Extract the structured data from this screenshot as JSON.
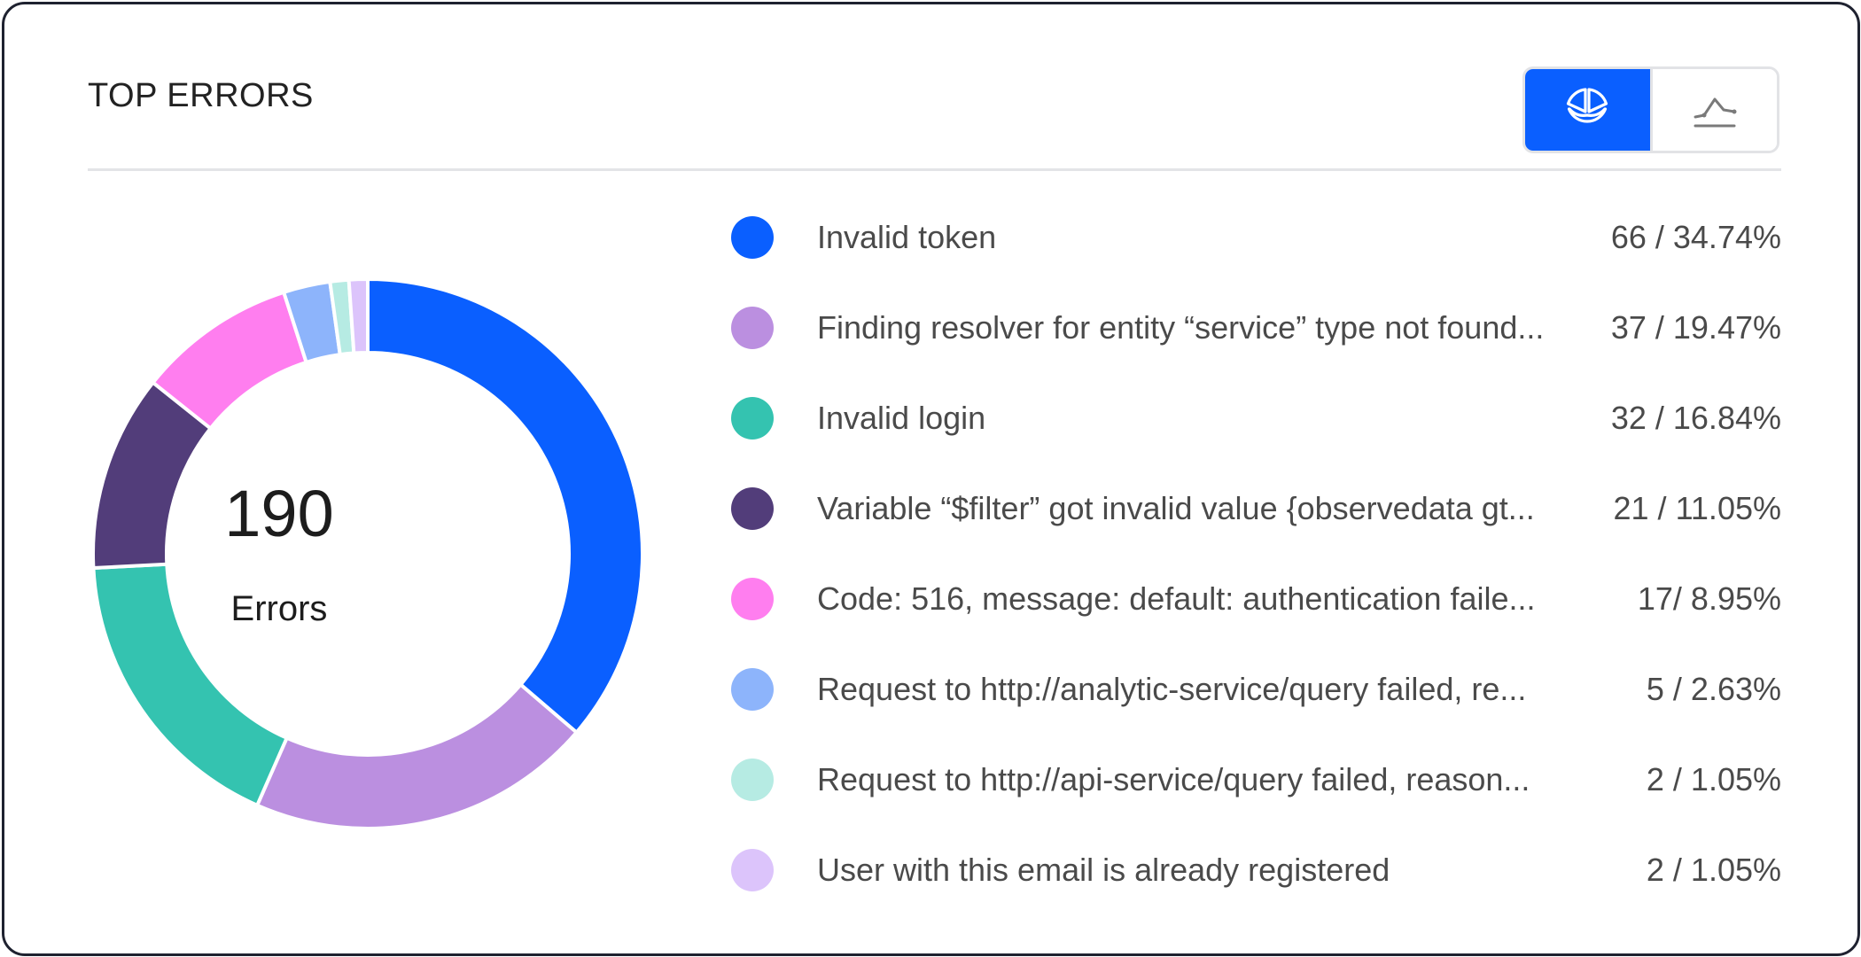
{
  "widget": {
    "title": "TOP ERRORS",
    "view_toggle": [
      {
        "icon": "pie-chart-icon",
        "active": true
      },
      {
        "icon": "line-chart-icon",
        "active": false
      }
    ],
    "accent_color": "#0a5fff"
  },
  "summary": {
    "total": "190",
    "label": "Errors"
  },
  "legend": [
    {
      "label": "Invalid token",
      "value": "66 / 34.74%",
      "color": "#0a5fff"
    },
    {
      "label": "Finding resolver for entity “service” type not found...",
      "value": "37 / 19.47%",
      "color": "#bb8fe0"
    },
    {
      "label": "Invalid login",
      "value": "32 / 16.84%",
      "color": "#34c3b0"
    },
    {
      "label": "Variable “$filter” got invalid value {observedata gt...",
      "value": "21 / 11.05%",
      "color": "#523d7a"
    },
    {
      "label": "Code: 516, message: default: authentication faile...",
      "value": "17/ 8.95%",
      "color": "#ff7eef"
    },
    {
      "label": "Request to http://analytic-service/query failed, re...",
      "value": "5 / 2.63%",
      "color": "#8db4fb"
    },
    {
      "label": "Request to http://api-service/query failed, reason...",
      "value": "2 / 1.05%",
      "color": "#b6ebe3"
    },
    {
      "label": "User with this email is already registered",
      "value": "2 / 1.05%",
      "color": "#dcc4fb"
    }
  ],
  "chart_data": {
    "type": "pie",
    "donut": true,
    "total": 190,
    "categories": [
      "Invalid token",
      "Finding resolver for entity “service” type not found...",
      "Invalid login",
      "Variable “$filter” got invalid value {observedata gt...",
      "Code: 516, message: default: authentication faile...",
      "Request to http://analytic-service/query failed, re...",
      "Request to http://api-service/query failed, reason...",
      "User with this email is already registered"
    ],
    "values": [
      66,
      37,
      32,
      21,
      17,
      5,
      2,
      2
    ],
    "percentages": [
      34.74,
      19.47,
      16.84,
      11.05,
      8.95,
      2.63,
      1.05,
      1.05
    ],
    "colors": [
      "#0a5fff",
      "#bb8fe0",
      "#34c3b0",
      "#523d7a",
      "#ff7eef",
      "#8db4fb",
      "#b6ebe3",
      "#dcc4fb"
    ]
  }
}
